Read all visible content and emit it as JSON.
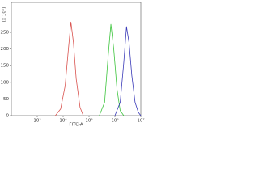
{
  "chart_data": {
    "type": "line",
    "x_label": "FITC-A",
    "y_label": "(x 10¹)",
    "x_scale": "log",
    "xlim": [
      100,
      10000000
    ],
    "ylim": [
      0,
      340
    ],
    "xticks": [
      {
        "value": 1000,
        "label": "10³"
      },
      {
        "value": 10000,
        "label": "10⁴"
      },
      {
        "value": 100000,
        "label": "10⁵"
      },
      {
        "value": 1000000,
        "label": "10⁶"
      },
      {
        "value": 10000000,
        "label": "10⁷"
      }
    ],
    "yticks": [
      0,
      50,
      100,
      150,
      200,
      250
    ],
    "series": [
      {
        "color": "#d9534f",
        "x": [
          5000,
          8000,
          12000,
          16000,
          20000,
          25000,
          32000,
          45000,
          60000
        ],
        "values": [
          0,
          20,
          90,
          200,
          281,
          220,
          110,
          25,
          0
        ]
      },
      {
        "color": "#3cc43c",
        "x": [
          250000,
          400000,
          550000,
          700000,
          900000,
          1200000,
          1600000,
          2200000
        ],
        "values": [
          0,
          40,
          180,
          274,
          200,
          80,
          15,
          0
        ]
      },
      {
        "color": "#3a3ab8",
        "x": [
          1000000,
          1600000,
          2200000,
          2800000,
          3500000,
          4500000,
          6000000,
          8000000,
          10000000
        ],
        "values": [
          0,
          40,
          160,
          267,
          220,
          120,
          40,
          10,
          0
        ]
      }
    ]
  }
}
